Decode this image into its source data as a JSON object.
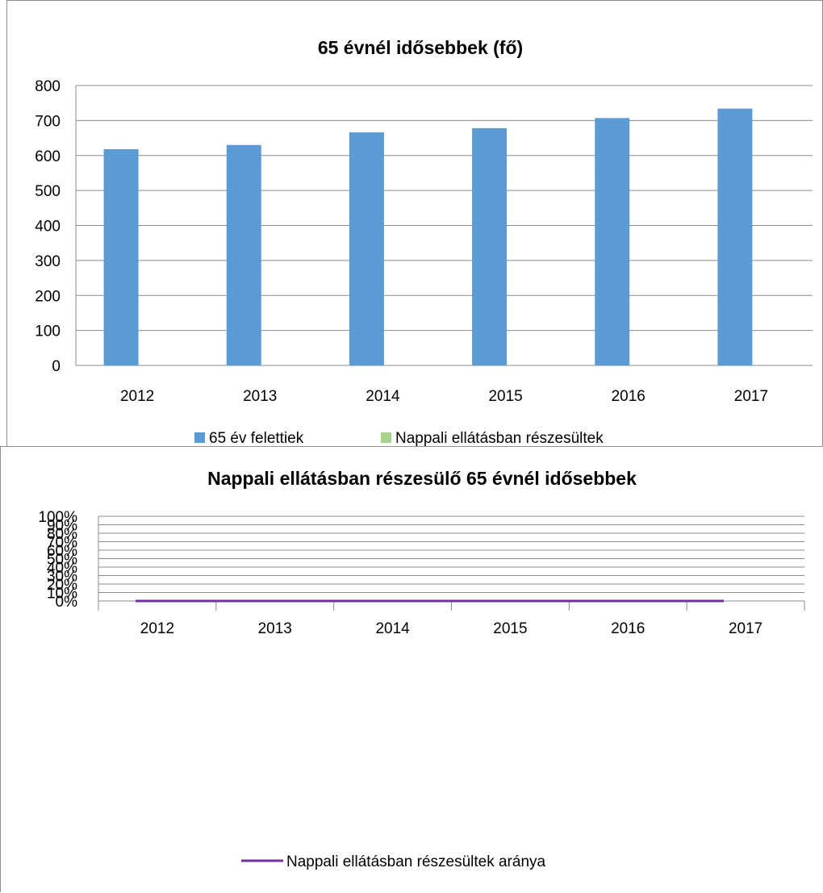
{
  "chart_data": [
    {
      "type": "bar",
      "title": "65 évnél idősebbek (fő)",
      "categories": [
        "2012",
        "2013",
        "2014",
        "2015",
        "2016",
        "2017"
      ],
      "series": [
        {
          "name": "65 év felettiek",
          "color": "#5B9BD5",
          "values": [
            618,
            630,
            666,
            678,
            707,
            734
          ]
        },
        {
          "name": "Nappali ellátásban részesültek",
          "color": "#A9D18E",
          "values": [
            0,
            0,
            0,
            0,
            0,
            0
          ]
        }
      ],
      "ylim": [
        0,
        800
      ],
      "yticks": [
        "0",
        "100",
        "200",
        "300",
        "400",
        "500",
        "600",
        "700",
        "800"
      ],
      "grid": true,
      "legend": "bottom"
    },
    {
      "type": "line",
      "title": "Nappali ellátásban részesülő 65 évnél idősebbek",
      "categories": [
        "2012",
        "2013",
        "2014",
        "2015",
        "2016",
        "2017"
      ],
      "series": [
        {
          "name": "Nappali ellátásban részesültek aránya",
          "color": "#7030A0",
          "values": [
            0,
            0,
            0,
            0,
            0,
            0
          ]
        }
      ],
      "ylim": [
        0,
        100
      ],
      "yticks": [
        "0%",
        "10%",
        "20%",
        "30%",
        "40%",
        "50%",
        "60%",
        "70%",
        "80%",
        "90%",
        "100%"
      ],
      "grid": true,
      "legend": "bottom"
    }
  ]
}
